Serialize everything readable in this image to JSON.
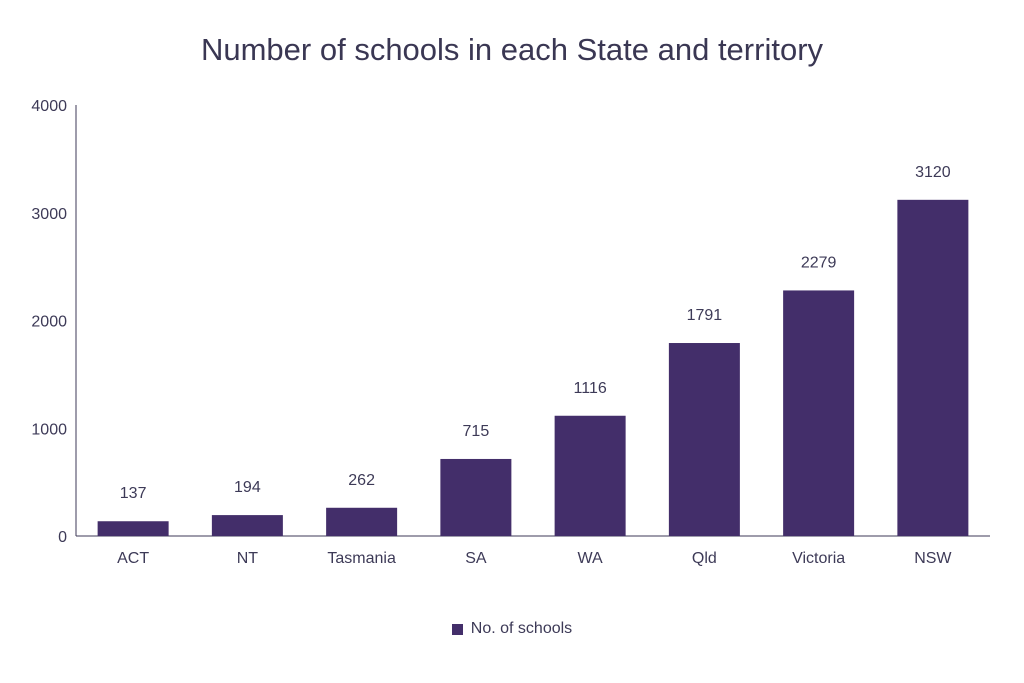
{
  "chart_data": {
    "type": "bar",
    "title": "Number of schools in each State and territory",
    "xlabel": "",
    "ylabel": "",
    "categories": [
      "ACT",
      "NT",
      "Tasmania",
      "SA",
      "WA",
      "Qld",
      "Victoria",
      "NSW"
    ],
    "series": [
      {
        "name": "No. of schools",
        "values": [
          137,
          194,
          262,
          715,
          1116,
          1791,
          2279,
          3120
        ],
        "color": "#432e6a"
      }
    ],
    "ylim": [
      0,
      4000
    ],
    "yticks": [
      "0",
      "1000",
      "2000",
      "3000",
      "4000"
    ],
    "grid": false,
    "legend_position": "bottom",
    "data_labels": true
  }
}
